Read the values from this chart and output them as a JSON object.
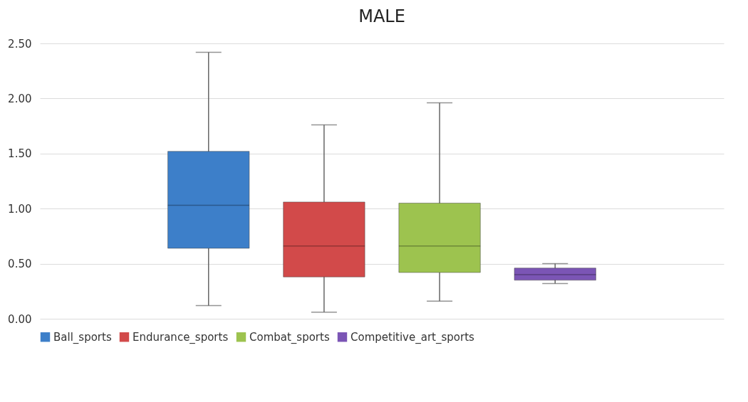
{
  "chart_data": {
    "type": "box",
    "title": "MALE",
    "categories": [
      null
    ],
    "series": [
      {
        "name": "Ball_sports",
        "color": "#3d7fc9",
        "boxes": [
          {
            "low": 0.12,
            "q1": 0.64,
            "median": 1.03,
            "q3": 1.52,
            "high": 2.42
          }
        ]
      },
      {
        "name": "Endurance_sports",
        "color": "#d24a4a",
        "boxes": [
          {
            "low": 0.06,
            "q1": 0.38,
            "median": 0.66,
            "q3": 1.06,
            "high": 1.76
          }
        ]
      },
      {
        "name": "Combat_sports",
        "color": "#9dc34f",
        "boxes": [
          {
            "low": 0.16,
            "q1": 0.42,
            "median": 0.66,
            "q3": 1.05,
            "high": 1.96
          }
        ]
      },
      {
        "name": "Competitive_art_sports",
        "color": "#7b55b5",
        "boxes": [
          {
            "low": 0.32,
            "q1": 0.35,
            "median": 0.4,
            "q3": 0.46,
            "high": 0.5
          }
        ]
      }
    ],
    "ylim": [
      0,
      2.5
    ],
    "yticks": [
      {
        "value": 0,
        "label": "0.00"
      },
      {
        "value": 0.5,
        "label": "0.50"
      },
      {
        "value": 1,
        "label": "1.00"
      },
      {
        "value": 1.5,
        "label": "1.50"
      },
      {
        "value": 2,
        "label": "2.00"
      },
      {
        "value": 2.5,
        "label": "2.50"
      }
    ],
    "grid": "y",
    "legend": "bottom"
  }
}
